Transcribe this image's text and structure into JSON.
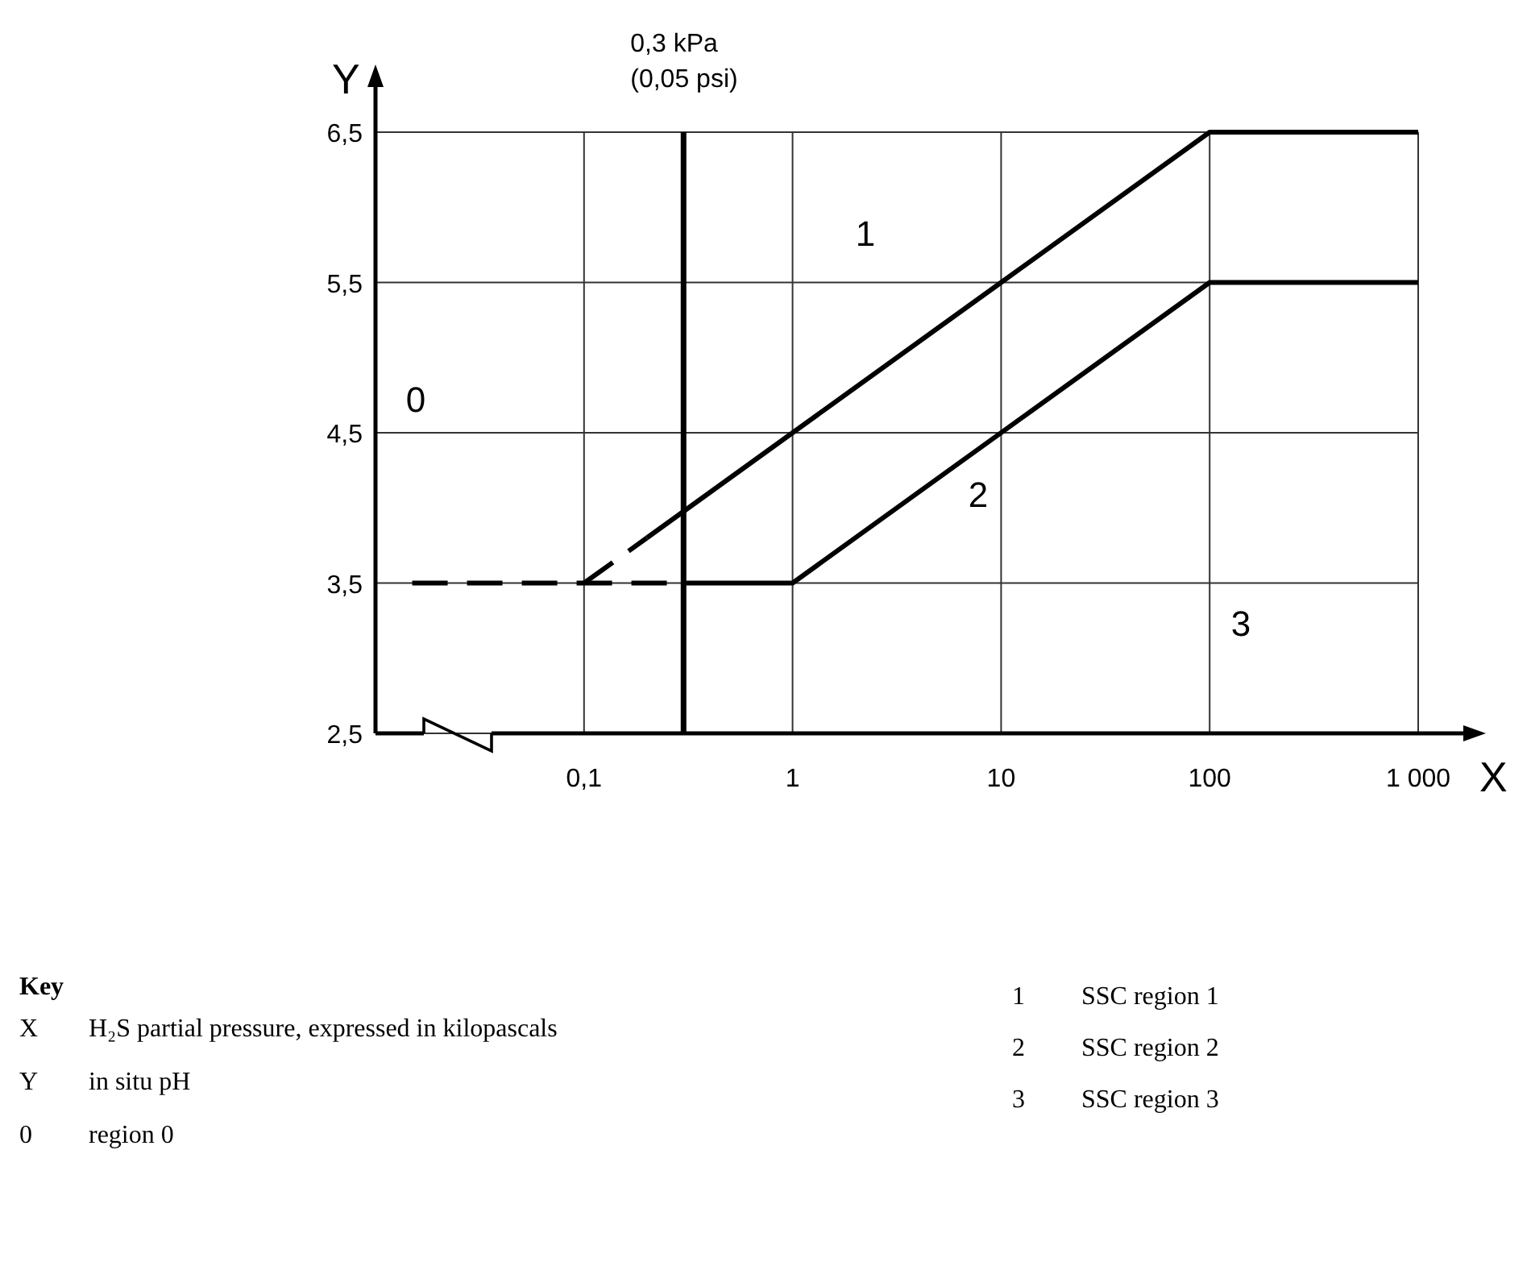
{
  "chart_data": {
    "type": "line",
    "xlabel": "X",
    "ylabel": "Y",
    "log": "x",
    "grid": true,
    "xlim": [
      0.01,
      1000
    ],
    "ylim": [
      2.5,
      6.5
    ],
    "xticks": [
      {
        "value": 0.1,
        "label": "0,1"
      },
      1,
      10,
      100,
      {
        "value": 1000,
        "label": "1 000"
      }
    ],
    "yticks": [
      {
        "value": 2.5,
        "label": "2,5"
      },
      {
        "value": 3.5,
        "label": "3,5"
      },
      {
        "value": 4.5,
        "label": "4,5"
      },
      {
        "value": 5.5,
        "label": "5,5"
      },
      {
        "value": 6.5,
        "label": "6,5"
      }
    ],
    "series": [
      {
        "color": "#000000",
        "line_style": "dashed",
        "x": [
          0.015,
          0.3
        ],
        "values": [
          3.5,
          3.5
        ]
      },
      {
        "color": "#000000",
        "line_style": "dashed",
        "x": [
          0.1,
          0.2
        ],
        "values": [
          3.5,
          3.8
        ]
      },
      {
        "color": "#000000",
        "line_style": "solid",
        "x": [
          0.2,
          1,
          10,
          100,
          1000
        ],
        "values": [
          3.8,
          4.5,
          5.5,
          6.5,
          6.5
        ]
      },
      {
        "color": "#000000",
        "line_style": "solid",
        "x": [
          0.3,
          1,
          100,
          1000
        ],
        "values": [
          3.5,
          3.5,
          5.5,
          5.5
        ]
      }
    ],
    "ref_lines": [
      {
        "axis": "x",
        "value": 0.3,
        "label": "0,3 kPa\n(0,05 psi)",
        "color": "#000000"
      }
    ],
    "annotations": [
      "0",
      "1",
      "2",
      "3",
      "Key",
      "X H₂S partial pressure, expressed in kilopascals",
      "Y in situ pH",
      "0 region 0",
      "1 SSC region 1",
      "2 SSC region 2",
      "3 SSC region 3"
    ]
  }
}
